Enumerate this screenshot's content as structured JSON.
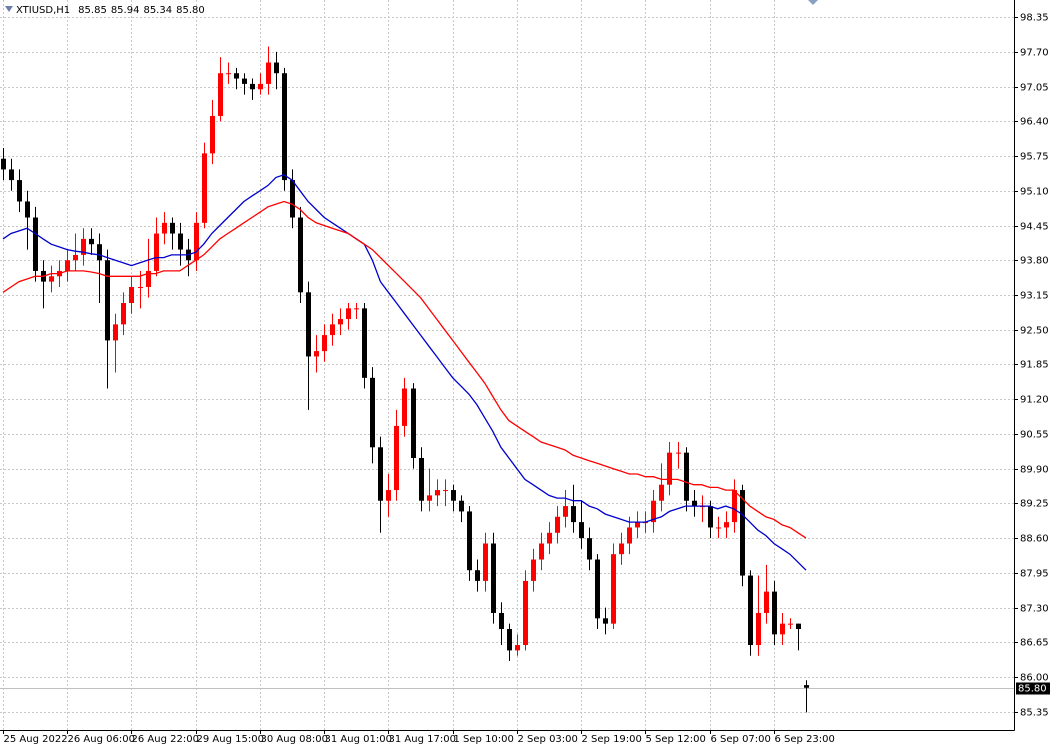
{
  "chart_data": {
    "type": "candlestick",
    "title": "XTIUSD,H1",
    "last_labels": [
      "85.85",
      "85.94",
      "85.34",
      "85.80"
    ],
    "up_color": "#ff0000",
    "down_color": "#000000",
    "grid": true,
    "ylim": [
      85.01,
      98.67
    ],
    "yticks": [
      98.35,
      {
        "value": 97.7,
        "label": "97.70"
      },
      97.05,
      {
        "value": 96.4,
        "label": "96.40"
      },
      95.75,
      {
        "value": 95.1,
        "label": "95.10"
      },
      94.45,
      {
        "value": 93.8,
        "label": "93.80"
      },
      93.15,
      {
        "value": 92.5,
        "label": "92.50"
      },
      91.85,
      {
        "value": 91.2,
        "label": "91.20"
      },
      90.55,
      {
        "value": 89.9,
        "label": "89.90"
      },
      89.25,
      {
        "value": 88.6,
        "label": "88.60"
      },
      87.95,
      {
        "value": 87.3,
        "label": "87.30"
      },
      86.65,
      {
        "value": 86,
        "label": "86.00"
      },
      85.35
    ],
    "price_line": {
      "value": 85.8,
      "label": "85.80"
    },
    "categories": [
      "25 Aug 2022",
      null,
      null,
      null,
      null,
      null,
      null,
      null,
      "26 Aug 06:00",
      null,
      null,
      null,
      null,
      null,
      null,
      null,
      "26 Aug 22:00",
      null,
      null,
      null,
      null,
      null,
      null,
      null,
      "29 Aug 15:00",
      null,
      null,
      null,
      null,
      null,
      null,
      null,
      "30 Aug 08:00",
      null,
      null,
      null,
      null,
      null,
      null,
      null,
      "31 Aug 01:00",
      null,
      null,
      null,
      null,
      null,
      null,
      null,
      "31 Aug 17:00",
      null,
      null,
      null,
      null,
      null,
      null,
      null,
      "1 Sep 10:00",
      null,
      null,
      null,
      null,
      null,
      null,
      null,
      "2 Sep 03:00",
      null,
      null,
      null,
      null,
      null,
      null,
      null,
      "2 Sep 19:00",
      null,
      null,
      null,
      null,
      null,
      null,
      null,
      "5 Sep 12:00",
      null,
      null,
      null,
      null,
      null,
      null,
      null,
      "6 Sep 07:00",
      null,
      null,
      null,
      null,
      null,
      null,
      null,
      "6 Sep 23:00",
      null,
      null,
      null,
      null
    ],
    "open": [
      95.7,
      95.5,
      95.3,
      94.9,
      94.6,
      93.6,
      93.4,
      93.5,
      93.6,
      93.8,
      93.9,
      94.2,
      94.1,
      93.8,
      92.3,
      92.6,
      93.0,
      93.3,
      93.3,
      93.6,
      94.3,
      94.5,
      94.3,
      94.0,
      93.8,
      94.5,
      95.8,
      96.5,
      97.3,
      97.3,
      97.2,
      97.1,
      97.0,
      97.1,
      97.5,
      97.3,
      95.3,
      94.6,
      93.2,
      92.0,
      92.1,
      92.4,
      92.6,
      92.7,
      92.9,
      92.9,
      91.6,
      90.3,
      89.3,
      89.5,
      90.7,
      91.4,
      90.1,
      89.3,
      89.4,
      89.5,
      89.5,
      89.3,
      89.1,
      88.0,
      87.8,
      88.5,
      87.2,
      86.9,
      86.5,
      86.6,
      87.8,
      88.2,
      88.5,
      88.7,
      89.0,
      89.2,
      88.9,
      88.6,
      88.2,
      87.1,
      87.0,
      88.3,
      88.5,
      88.8,
      88.9,
      88.9,
      89.3,
      89.6,
      90.2,
      90.2,
      89.3,
      89.2,
      89.2,
      88.8,
      88.8,
      88.9,
      89.5,
      87.9,
      86.6,
      87.2,
      87.6,
      86.8,
      87.0,
      87.0,
      85.85
    ],
    "high": [
      95.9,
      95.7,
      95.5,
      95.1,
      94.8,
      93.8,
      93.7,
      93.8,
      94.0,
      94.3,
      94.4,
      94.4,
      94.3,
      94.0,
      92.8,
      93.2,
      93.5,
      93.6,
      94.2,
      94.6,
      94.7,
      94.6,
      94.5,
      94.2,
      94.7,
      96.0,
      96.8,
      97.6,
      97.5,
      97.4,
      97.3,
      97.2,
      97.3,
      97.8,
      97.7,
      97.4,
      95.5,
      94.8,
      93.4,
      92.4,
      92.6,
      92.8,
      92.9,
      93.0,
      93.0,
      93.0,
      91.8,
      90.5,
      89.8,
      91.0,
      91.6,
      91.5,
      90.3,
      89.9,
      89.7,
      89.7,
      89.6,
      89.4,
      89.2,
      88.2,
      88.7,
      88.7,
      87.4,
      87.0,
      86.8,
      88.0,
      88.4,
      88.7,
      88.9,
      89.2,
      89.5,
      89.6,
      89.3,
      88.8,
      88.3,
      87.3,
      88.5,
      88.7,
      89.0,
      89.1,
      89.1,
      89.5,
      90.0,
      90.4,
      90.4,
      90.3,
      89.5,
      89.4,
      89.3,
      89.0,
      89.1,
      89.7,
      89.6,
      88.0,
      87.9,
      88.1,
      87.8,
      87.2,
      87.1,
      87.0,
      85.94
    ],
    "low": [
      95.3,
      95.1,
      94.7,
      94.0,
      93.4,
      92.9,
      93.2,
      93.3,
      93.4,
      93.6,
      93.7,
      93.9,
      93.0,
      91.4,
      91.7,
      92.4,
      92.8,
      92.9,
      93.1,
      93.5,
      94.1,
      94.0,
      93.7,
      93.5,
      93.6,
      94.4,
      95.6,
      96.4,
      97.1,
      97.0,
      96.9,
      96.8,
      96.9,
      96.9,
      97.0,
      95.1,
      94.4,
      93.0,
      91.0,
      91.7,
      91.9,
      92.2,
      92.4,
      92.5,
      92.7,
      91.4,
      90.0,
      88.7,
      89.0,
      89.3,
      90.5,
      89.9,
      89.1,
      89.1,
      89.2,
      89.2,
      89.1,
      88.9,
      87.8,
      87.6,
      87.6,
      87.0,
      86.6,
      86.3,
      86.4,
      86.5,
      87.6,
      88.0,
      88.3,
      88.5,
      88.8,
      88.7,
      88.4,
      88.0,
      86.9,
      86.8,
      86.9,
      88.1,
      88.3,
      88.6,
      88.7,
      88.7,
      89.1,
      89.4,
      89.9,
      89.1,
      89.0,
      88.9,
      88.6,
      88.6,
      88.6,
      88.7,
      87.7,
      86.4,
      86.4,
      87.0,
      86.6,
      86.6,
      86.9,
      86.5,
      85.34
    ],
    "close": [
      95.5,
      95.3,
      94.9,
      94.6,
      93.6,
      93.4,
      93.5,
      93.6,
      93.8,
      93.9,
      94.2,
      94.1,
      93.8,
      92.3,
      92.6,
      93.0,
      93.3,
      93.3,
      93.6,
      94.3,
      94.5,
      94.3,
      94.0,
      93.8,
      94.5,
      95.8,
      96.5,
      97.3,
      97.3,
      97.2,
      97.1,
      97.0,
      97.1,
      97.5,
      97.3,
      95.3,
      94.6,
      93.2,
      92.0,
      92.1,
      92.4,
      92.6,
      92.7,
      92.9,
      92.9,
      91.6,
      90.3,
      89.3,
      89.5,
      90.7,
      91.4,
      90.1,
      89.3,
      89.4,
      89.5,
      89.5,
      89.3,
      89.1,
      88.0,
      87.8,
      88.5,
      87.2,
      86.9,
      86.5,
      86.6,
      87.8,
      88.2,
      88.5,
      88.7,
      89.0,
      89.2,
      88.9,
      88.6,
      88.2,
      87.1,
      87.0,
      88.3,
      88.5,
      88.8,
      88.9,
      88.9,
      89.3,
      89.6,
      90.2,
      90.2,
      89.3,
      89.2,
      89.2,
      88.8,
      88.8,
      88.9,
      89.5,
      87.9,
      86.6,
      87.2,
      87.6,
      86.8,
      87.0,
      87.0,
      86.9,
      85.8
    ],
    "lines": [
      {
        "color": "#0000cc",
        "values": [
          94.2,
          94.3,
          94.35,
          94.4,
          94.3,
          94.2,
          94.1,
          94.05,
          94.0,
          93.97,
          93.95,
          93.92,
          93.9,
          93.85,
          93.8,
          93.75,
          93.7,
          93.75,
          93.8,
          93.85,
          93.85,
          93.9,
          93.9,
          93.9,
          93.95,
          94.1,
          94.3,
          94.45,
          94.6,
          94.75,
          94.9,
          95.0,
          95.1,
          95.2,
          95.35,
          95.4,
          95.3,
          95.1,
          94.9,
          94.75,
          94.6,
          94.5,
          94.4,
          94.3,
          94.2,
          94.1,
          93.8,
          93.4,
          93.2,
          93.0,
          92.8,
          92.6,
          92.4,
          92.2,
          92.0,
          91.8,
          91.6,
          91.45,
          91.3,
          91.1,
          90.85,
          90.6,
          90.3,
          90.1,
          89.9,
          89.7,
          89.6,
          89.5,
          89.4,
          89.35,
          89.35,
          89.3,
          89.3,
          89.2,
          89.15,
          89.05,
          89.0,
          88.95,
          88.9,
          88.9,
          88.9,
          88.95,
          89.0,
          89.1,
          89.15,
          89.2,
          89.2,
          89.2,
          89.2,
          89.15,
          89.2,
          89.15,
          89.05,
          88.9,
          88.75,
          88.65,
          88.5,
          88.4,
          88.3,
          88.15,
          88.0
        ]
      },
      {
        "color": "#ff0000",
        "values": [
          93.2,
          93.3,
          93.4,
          93.45,
          93.5,
          93.5,
          93.55,
          93.55,
          93.6,
          93.6,
          93.6,
          93.58,
          93.55,
          93.5,
          93.5,
          93.5,
          93.5,
          93.5,
          93.55,
          93.55,
          93.6,
          93.6,
          93.6,
          93.7,
          93.8,
          93.9,
          94.05,
          94.2,
          94.3,
          94.4,
          94.5,
          94.6,
          94.7,
          94.8,
          94.85,
          94.9,
          94.85,
          94.75,
          94.6,
          94.5,
          94.45,
          94.4,
          94.35,
          94.3,
          94.2,
          94.1,
          94.0,
          93.85,
          93.7,
          93.55,
          93.4,
          93.25,
          93.1,
          92.9,
          92.7,
          92.5,
          92.3,
          92.1,
          91.9,
          91.7,
          91.5,
          91.25,
          91.0,
          90.8,
          90.7,
          90.6,
          90.5,
          90.4,
          90.35,
          90.3,
          90.25,
          90.15,
          90.1,
          90.05,
          90.0,
          89.95,
          89.9,
          89.85,
          89.8,
          89.8,
          89.75,
          89.75,
          89.7,
          89.7,
          89.7,
          89.65,
          89.6,
          89.6,
          89.55,
          89.55,
          89.5,
          89.5,
          89.35,
          89.2,
          89.1,
          89.0,
          88.95,
          88.85,
          88.8,
          88.7,
          88.6
        ]
      }
    ]
  }
}
